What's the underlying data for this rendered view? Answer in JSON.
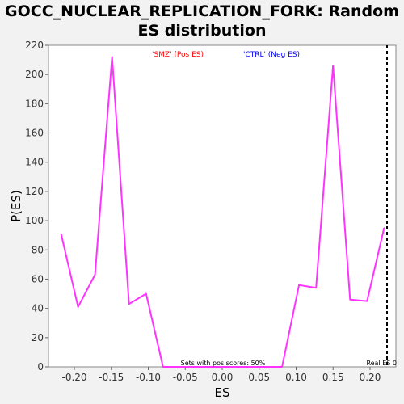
{
  "chart_data": {
    "type": "line",
    "title_line1": "GOCC_NUCLEAR_REPLICATION_FORK: Random",
    "title_line2": "ES distribution",
    "xlabel": "ES",
    "ylabel": "P(ES)",
    "xlim": [
      -0.235,
      0.235
    ],
    "ylim": [
      0,
      220
    ],
    "xticks": [
      -0.2,
      -0.15,
      -0.1,
      -0.05,
      0.0,
      0.05,
      0.1,
      0.15,
      0.2
    ],
    "xtick_labels": [
      "-0.20",
      "-0.15",
      "-0.10",
      "-0.05",
      "0.00",
      "0.05",
      "0.10",
      "0.15",
      "0.20"
    ],
    "yticks": [
      0,
      20,
      40,
      60,
      80,
      100,
      120,
      140,
      160,
      180,
      200,
      220
    ],
    "grid": true,
    "series": [
      {
        "color": "#ff33ff",
        "x": [
          -0.218,
          -0.195,
          -0.172,
          -0.149,
          -0.126,
          -0.103,
          -0.08,
          -0.057,
          -0.034,
          -0.011,
          0.012,
          0.035,
          0.058,
          0.081,
          0.104,
          0.127,
          0.15,
          0.173,
          0.196,
          0.219
        ],
        "y": [
          91,
          41,
          63,
          212,
          43,
          50,
          0,
          0,
          0,
          0,
          0,
          0,
          0,
          0,
          56,
          54,
          206,
          46,
          45,
          95
        ]
      }
    ],
    "legend": [
      {
        "label": "'SMZ' (Pos ES)",
        "color": "#ff0000"
      },
      {
        "label": "'CTRL' (Neg ES)",
        "color": "#0000ff"
      }
    ],
    "real_es_x": 0.223,
    "annotations": {
      "sets_text": "Sets with pos scores: 50%",
      "real_es_text": "Real ES 0"
    }
  }
}
